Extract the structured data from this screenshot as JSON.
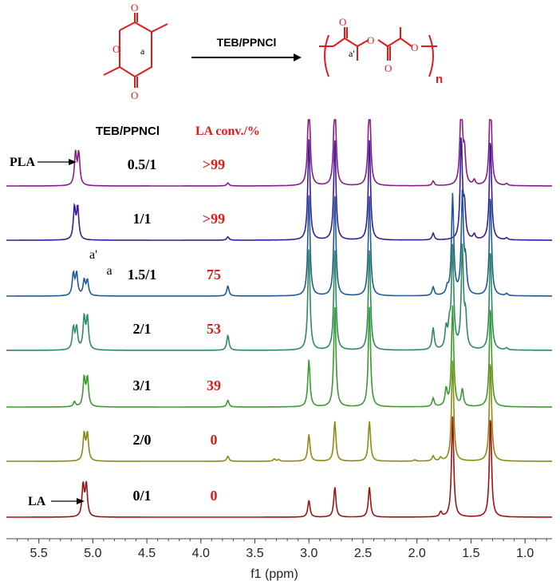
{
  "scheme": {
    "reagent_label": "TEB/PPNCl",
    "monomer_label_a": "a",
    "polymer_label_a_prime": "a'",
    "polymer_subscript": "n",
    "red_color": "#e01b1b"
  },
  "chart_data": {
    "type": "line",
    "xlabel": "f1 (ppm)",
    "x_reversed": true,
    "xlim": [
      5.8,
      0.75
    ],
    "x_ticks": [
      "5.5",
      "5.0",
      "4.5",
      "4.0",
      "3.5",
      "3.0",
      "2.5",
      "2.0",
      "1.5",
      "1.0"
    ],
    "x_tick_values": [
      5.5,
      5.0,
      4.5,
      4.0,
      3.5,
      3.0,
      2.5,
      2.0,
      1.5,
      1.0
    ],
    "column_headers": {
      "ratio": "TEB/PPNCl",
      "conversion": "LA conv./%"
    },
    "annotations": {
      "pla_label": "PLA",
      "la_label": "LA",
      "peak_a_prime": "a'",
      "peak_a": "a"
    },
    "series": [
      {
        "ratio": "0.5/1",
        "conversion": ">99",
        "color": "#8b1a8b",
        "peaks": [
          [
            5.16,
            0.95
          ],
          [
            5.13,
            0.95
          ],
          [
            3.75,
            0.09
          ],
          [
            3.0,
            3
          ],
          [
            2.76,
            3
          ],
          [
            2.44,
            3
          ],
          [
            1.85,
            0.14
          ],
          [
            1.59,
            3
          ],
          [
            1.56,
            0.9
          ],
          [
            1.47,
            0.15
          ],
          [
            1.32,
            3
          ],
          [
            1.17,
            0.06
          ]
        ]
      },
      {
        "ratio": "1/1",
        "conversion": ">99",
        "color": "#3b1c96",
        "peaks": [
          [
            5.17,
            0.95
          ],
          [
            5.14,
            0.95
          ],
          [
            3.75,
            0.1
          ],
          [
            3.0,
            3
          ],
          [
            2.76,
            3
          ],
          [
            2.44,
            3
          ],
          [
            1.85,
            0.2
          ],
          [
            1.59,
            3
          ],
          [
            1.56,
            0.9
          ],
          [
            1.47,
            0.15
          ],
          [
            1.32,
            3
          ],
          [
            1.17,
            0.06
          ]
        ]
      },
      {
        "ratio": "1.5/1",
        "conversion": "75",
        "color": "#1f5a96",
        "peaks": [
          [
            5.18,
            0.65
          ],
          [
            5.15,
            0.65
          ],
          [
            5.08,
            0.45
          ],
          [
            5.05,
            0.45
          ],
          [
            3.75,
            0.3
          ],
          [
            3.0,
            3
          ],
          [
            2.76,
            3
          ],
          [
            2.44,
            3
          ],
          [
            1.85,
            0.25
          ],
          [
            1.72,
            0.2
          ],
          [
            1.67,
            3
          ],
          [
            1.58,
            3
          ],
          [
            1.55,
            0.9
          ],
          [
            1.32,
            3
          ],
          [
            1.17,
            0.06
          ]
        ]
      },
      {
        "ratio": "2/1",
        "conversion": "53",
        "color": "#2f8a5f",
        "peaks": [
          [
            5.18,
            0.65
          ],
          [
            5.15,
            0.65
          ],
          [
            5.08,
            0.95
          ],
          [
            5.05,
            0.95
          ],
          [
            3.75,
            0.45
          ],
          [
            3.0,
            3
          ],
          [
            2.76,
            3
          ],
          [
            2.44,
            3
          ],
          [
            1.85,
            0.65
          ],
          [
            1.73,
            0.6
          ],
          [
            1.7,
            0.6
          ],
          [
            1.67,
            3
          ],
          [
            1.58,
            3
          ],
          [
            1.55,
            0.9
          ],
          [
            1.32,
            3
          ],
          [
            1.17,
            0.06
          ]
        ]
      },
      {
        "ratio": "3/1",
        "conversion": "39",
        "color": "#3a9b2e",
        "peaks": [
          [
            5.17,
            0.15
          ],
          [
            5.08,
            0.85
          ],
          [
            5.05,
            0.85
          ],
          [
            3.75,
            0.2
          ],
          [
            3.0,
            1.4
          ],
          [
            2.76,
            3
          ],
          [
            2.44,
            3
          ],
          [
            1.85,
            0.25
          ],
          [
            1.73,
            0.5
          ],
          [
            1.67,
            3
          ],
          [
            1.58,
            0.5
          ],
          [
            1.32,
            3
          ]
        ]
      },
      {
        "ratio": "2/0",
        "conversion": "0",
        "color": "#8c8a12",
        "peaks": [
          [
            5.08,
            0.8
          ],
          [
            5.05,
            0.8
          ],
          [
            3.75,
            0.15
          ],
          [
            3.32,
            0.07
          ],
          [
            3.28,
            0.05
          ],
          [
            3.0,
            0.8
          ],
          [
            2.76,
            1.2
          ],
          [
            2.44,
            1.2
          ],
          [
            2.02,
            0.04
          ],
          [
            1.85,
            0.15
          ],
          [
            1.78,
            0.1
          ],
          [
            1.67,
            3
          ],
          [
            1.32,
            3
          ]
        ]
      },
      {
        "ratio": "0/1",
        "conversion": "0",
        "color": "#9a1414",
        "peaks": [
          [
            5.09,
            0.95
          ],
          [
            5.06,
            0.95
          ],
          [
            3.0,
            0.5
          ],
          [
            2.76,
            0.9
          ],
          [
            2.44,
            0.9
          ],
          [
            1.78,
            0.15
          ],
          [
            1.67,
            3
          ],
          [
            1.32,
            3
          ]
        ]
      }
    ]
  }
}
